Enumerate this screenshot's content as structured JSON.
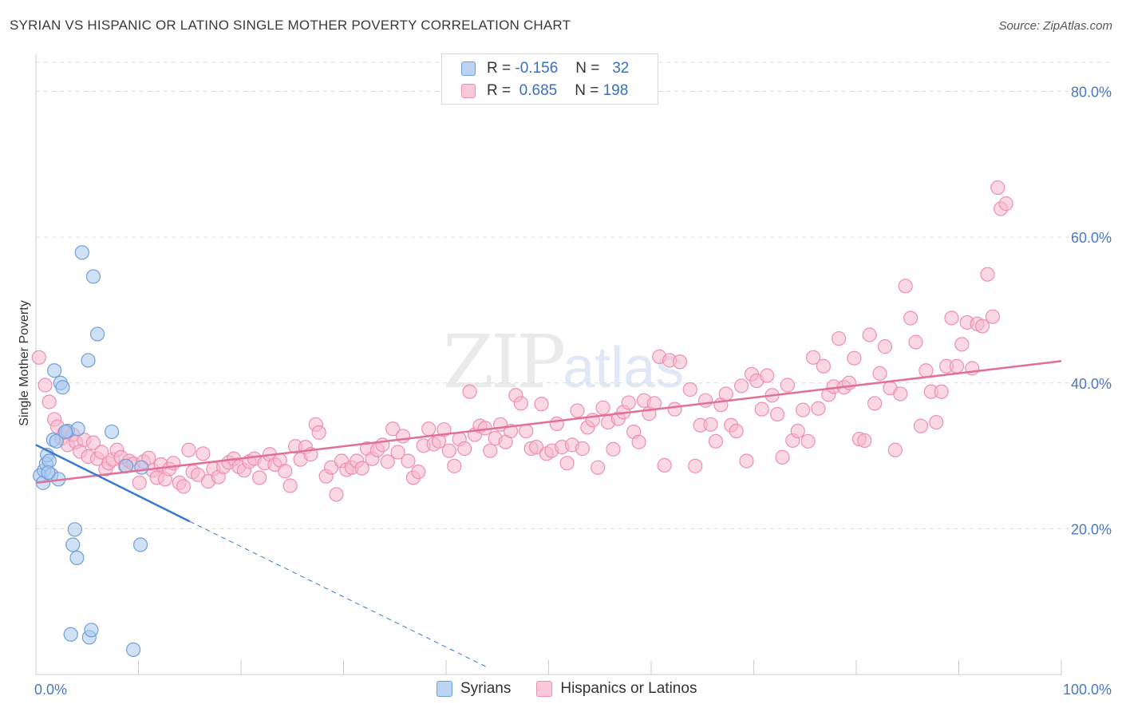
{
  "title": "SYRIAN VS HISPANIC OR LATINO SINGLE MOTHER POVERTY CORRELATION CHART",
  "source": "Source: ZipAtlas.com",
  "watermark": {
    "zip": "ZIP",
    "atlas": "atlas"
  },
  "legend": {
    "rows": [
      {
        "r_label": "R =",
        "r_value": "-0.156",
        "n_label": "N =",
        "n_value": "32"
      },
      {
        "r_label": "R =",
        "r_value": " 0.685",
        "n_label": "N =",
        "n_value": "198"
      }
    ]
  },
  "bottom_legend": {
    "syrians": "Syrians",
    "hispanics": "Hispanics or Latinos"
  },
  "colors": {
    "syrian_fill": "#a9c8ef",
    "syrian_stroke": "#6f9fd8",
    "syrian_line": "#3a78d0",
    "hisp_fill": "#f6b8cc",
    "hisp_stroke": "#ee8fae",
    "hisp_line": "#e0709a",
    "grid": "#dddddd",
    "tick_text": "#4a78c4"
  },
  "chart_data": {
    "type": "scatter",
    "title": "SYRIAN VS HISPANIC OR LATINO SINGLE MOTHER POVERTY CORRELATION CHART",
    "xlabel": "",
    "ylabel": "Single Mother Poverty",
    "xlim": [
      0,
      100
    ],
    "ylim": [
      0,
      84
    ],
    "yticks": [
      20,
      40,
      60,
      80
    ],
    "ytick_labels": [
      "20.0%",
      "40.0%",
      "60.0%",
      "80.0%"
    ],
    "x_end_labels": [
      "0.0%",
      "100.0%"
    ],
    "series": [
      {
        "name": "Syrians",
        "points": [
          [
            0.4,
            27.3
          ],
          [
            0.7,
            26.3
          ],
          [
            0.8,
            28.0
          ],
          [
            1.0,
            28.9
          ],
          [
            1.1,
            30.1
          ],
          [
            1.3,
            29.3
          ],
          [
            1.5,
            27.4
          ],
          [
            1.7,
            32.2
          ],
          [
            1.8,
            41.7
          ],
          [
            2.0,
            32.0
          ],
          [
            2.2,
            26.8
          ],
          [
            2.4,
            40.0
          ],
          [
            2.6,
            39.4
          ],
          [
            3.1,
            33.4
          ],
          [
            3.4,
            5.5
          ],
          [
            3.6,
            17.8
          ],
          [
            3.8,
            19.9
          ],
          [
            4.0,
            16.0
          ],
          [
            4.1,
            33.7
          ],
          [
            4.5,
            57.9
          ],
          [
            5.1,
            43.1
          ],
          [
            5.2,
            5.1
          ],
          [
            5.4,
            6.1
          ],
          [
            5.6,
            54.6
          ],
          [
            6.0,
            46.7
          ],
          [
            7.4,
            33.3
          ],
          [
            8.8,
            28.6
          ],
          [
            9.5,
            3.4
          ],
          [
            10.2,
            17.8
          ],
          [
            10.3,
            28.4
          ],
          [
            2.9,
            33.3
          ],
          [
            1.2,
            27.7
          ]
        ]
      },
      {
        "name": "Hispanics or Latinos",
        "points": [
          [
            0.3,
            43.5
          ],
          [
            0.9,
            39.7
          ],
          [
            1.3,
            37.4
          ],
          [
            1.8,
            35.0
          ],
          [
            2.1,
            34.0
          ],
          [
            2.5,
            32.4
          ],
          [
            2.8,
            33.2
          ],
          [
            3.1,
            31.5
          ],
          [
            3.6,
            32.9
          ],
          [
            3.9,
            31.9
          ],
          [
            4.3,
            30.6
          ],
          [
            4.7,
            32.2
          ],
          [
            5.1,
            29.9
          ],
          [
            5.6,
            31.8
          ],
          [
            6.0,
            29.6
          ],
          [
            6.4,
            30.5
          ],
          [
            6.8,
            28.2
          ],
          [
            7.1,
            29.0
          ],
          [
            7.5,
            29.5
          ],
          [
            7.9,
            30.8
          ],
          [
            8.3,
            29.8
          ],
          [
            8.7,
            28.6
          ],
          [
            9.1,
            29.3
          ],
          [
            9.5,
            28.9
          ],
          [
            10.1,
            26.3
          ],
          [
            10.5,
            29.2
          ],
          [
            11.0,
            29.7
          ],
          [
            11.4,
            28.0
          ],
          [
            11.8,
            27.0
          ],
          [
            12.2,
            28.8
          ],
          [
            12.6,
            26.8
          ],
          [
            13.0,
            28.2
          ],
          [
            13.4,
            29.0
          ],
          [
            14.0,
            26.3
          ],
          [
            14.4,
            25.8
          ],
          [
            14.9,
            30.8
          ],
          [
            15.3,
            27.8
          ],
          [
            15.8,
            27.4
          ],
          [
            16.3,
            30.3
          ],
          [
            16.8,
            26.5
          ],
          [
            17.3,
            28.2
          ],
          [
            17.8,
            27.1
          ],
          [
            18.3,
            28.5
          ],
          [
            18.8,
            29.1
          ],
          [
            19.3,
            29.6
          ],
          [
            19.8,
            28.5
          ],
          [
            20.3,
            28.0
          ],
          [
            20.8,
            29.2
          ],
          [
            21.3,
            29.6
          ],
          [
            21.8,
            27.0
          ],
          [
            22.3,
            29.0
          ],
          [
            22.8,
            30.2
          ],
          [
            23.3,
            28.8
          ],
          [
            23.8,
            29.4
          ],
          [
            24.3,
            27.9
          ],
          [
            24.8,
            25.9
          ],
          [
            25.3,
            31.3
          ],
          [
            25.8,
            29.5
          ],
          [
            26.3,
            31.2
          ],
          [
            26.8,
            30.2
          ],
          [
            27.3,
            34.3
          ],
          [
            27.6,
            33.2
          ],
          [
            28.3,
            27.2
          ],
          [
            28.8,
            28.4
          ],
          [
            29.3,
            24.7
          ],
          [
            29.8,
            29.3
          ],
          [
            30.3,
            28.1
          ],
          [
            30.8,
            28.4
          ],
          [
            31.3,
            29.3
          ],
          [
            31.8,
            28.3
          ],
          [
            32.3,
            31.0
          ],
          [
            32.8,
            29.6
          ],
          [
            33.3,
            30.8
          ],
          [
            33.8,
            31.5
          ],
          [
            34.3,
            29.2
          ],
          [
            34.8,
            33.7
          ],
          [
            35.3,
            30.5
          ],
          [
            35.8,
            32.7
          ],
          [
            36.3,
            29.3
          ],
          [
            36.8,
            27.0
          ],
          [
            37.3,
            27.8
          ],
          [
            37.8,
            31.4
          ],
          [
            38.3,
            33.7
          ],
          [
            38.8,
            31.6
          ],
          [
            39.3,
            32.0
          ],
          [
            39.8,
            33.6
          ],
          [
            40.3,
            30.7
          ],
          [
            40.8,
            28.6
          ],
          [
            41.3,
            32.3
          ],
          [
            41.8,
            31.0
          ],
          [
            42.3,
            38.8
          ],
          [
            42.8,
            32.9
          ],
          [
            43.3,
            34.1
          ],
          [
            43.8,
            33.8
          ],
          [
            44.3,
            30.7
          ],
          [
            44.8,
            32.4
          ],
          [
            45.3,
            34.3
          ],
          [
            45.8,
            31.9
          ],
          [
            46.3,
            33.4
          ],
          [
            46.8,
            38.3
          ],
          [
            47.3,
            37.2
          ],
          [
            47.8,
            33.4
          ],
          [
            48.3,
            31.0
          ],
          [
            48.8,
            31.2
          ],
          [
            49.3,
            37.1
          ],
          [
            49.8,
            30.3
          ],
          [
            50.3,
            30.7
          ],
          [
            50.8,
            34.4
          ],
          [
            51.3,
            31.2
          ],
          [
            51.8,
            29.0
          ],
          [
            52.3,
            31.5
          ],
          [
            52.8,
            36.2
          ],
          [
            53.3,
            31.0
          ],
          [
            53.8,
            33.9
          ],
          [
            54.3,
            34.9
          ],
          [
            54.8,
            28.4
          ],
          [
            55.3,
            36.6
          ],
          [
            55.8,
            34.6
          ],
          [
            56.3,
            30.9
          ],
          [
            56.8,
            35.1
          ],
          [
            57.3,
            36.0
          ],
          [
            57.8,
            37.3
          ],
          [
            58.3,
            33.3
          ],
          [
            58.8,
            31.9
          ],
          [
            59.3,
            37.6
          ],
          [
            59.8,
            35.8
          ],
          [
            60.3,
            37.2
          ],
          [
            60.8,
            43.6
          ],
          [
            61.3,
            28.7
          ],
          [
            61.8,
            43.1
          ],
          [
            62.3,
            36.4
          ],
          [
            62.8,
            42.9
          ],
          [
            63.8,
            39.1
          ],
          [
            64.3,
            28.6
          ],
          [
            64.8,
            34.2
          ],
          [
            65.3,
            37.6
          ],
          [
            65.8,
            34.3
          ],
          [
            66.3,
            32.0
          ],
          [
            66.8,
            37.0
          ],
          [
            67.3,
            38.5
          ],
          [
            67.8,
            34.2
          ],
          [
            68.3,
            33.4
          ],
          [
            68.8,
            39.6
          ],
          [
            69.3,
            29.3
          ],
          [
            69.8,
            41.2
          ],
          [
            70.3,
            40.3
          ],
          [
            70.8,
            36.4
          ],
          [
            71.3,
            41.0
          ],
          [
            71.8,
            38.3
          ],
          [
            72.3,
            35.7
          ],
          [
            72.8,
            29.8
          ],
          [
            73.3,
            39.7
          ],
          [
            73.8,
            32.1
          ],
          [
            74.3,
            33.4
          ],
          [
            74.8,
            36.3
          ],
          [
            75.3,
            32.0
          ],
          [
            75.8,
            43.5
          ],
          [
            76.3,
            36.5
          ],
          [
            76.8,
            42.3
          ],
          [
            77.3,
            38.4
          ],
          [
            77.8,
            39.5
          ],
          [
            78.3,
            46.1
          ],
          [
            78.8,
            39.4
          ],
          [
            79.3,
            40.0
          ],
          [
            79.8,
            43.4
          ],
          [
            80.3,
            32.3
          ],
          [
            80.8,
            32.1
          ],
          [
            81.3,
            46.6
          ],
          [
            81.8,
            37.2
          ],
          [
            82.3,
            41.3
          ],
          [
            82.8,
            45.0
          ],
          [
            83.3,
            39.3
          ],
          [
            83.8,
            30.8
          ],
          [
            84.3,
            38.5
          ],
          [
            84.8,
            53.3
          ],
          [
            85.3,
            48.9
          ],
          [
            85.8,
            45.6
          ],
          [
            86.3,
            34.1
          ],
          [
            86.8,
            41.7
          ],
          [
            87.3,
            38.8
          ],
          [
            87.8,
            34.6
          ],
          [
            88.3,
            38.8
          ],
          [
            88.8,
            42.3
          ],
          [
            89.3,
            48.9
          ],
          [
            89.8,
            42.3
          ],
          [
            90.3,
            45.3
          ],
          [
            90.8,
            48.3
          ],
          [
            91.3,
            42.0
          ],
          [
            91.8,
            48.1
          ],
          [
            92.3,
            47.8
          ],
          [
            92.8,
            54.9
          ],
          [
            93.3,
            49.1
          ],
          [
            93.8,
            66.8
          ],
          [
            94.1,
            63.9
          ],
          [
            94.6,
            64.6
          ]
        ]
      }
    ],
    "trendlines": [
      {
        "series": "Syrians",
        "from": [
          0,
          31.5
        ],
        "to": [
          15,
          21.0
        ],
        "dashed_to": [
          44,
          1.0
        ]
      },
      {
        "series": "Hispanics or Latinos",
        "from": [
          0,
          26.3
        ],
        "to": [
          100,
          43.0
        ]
      }
    ]
  }
}
